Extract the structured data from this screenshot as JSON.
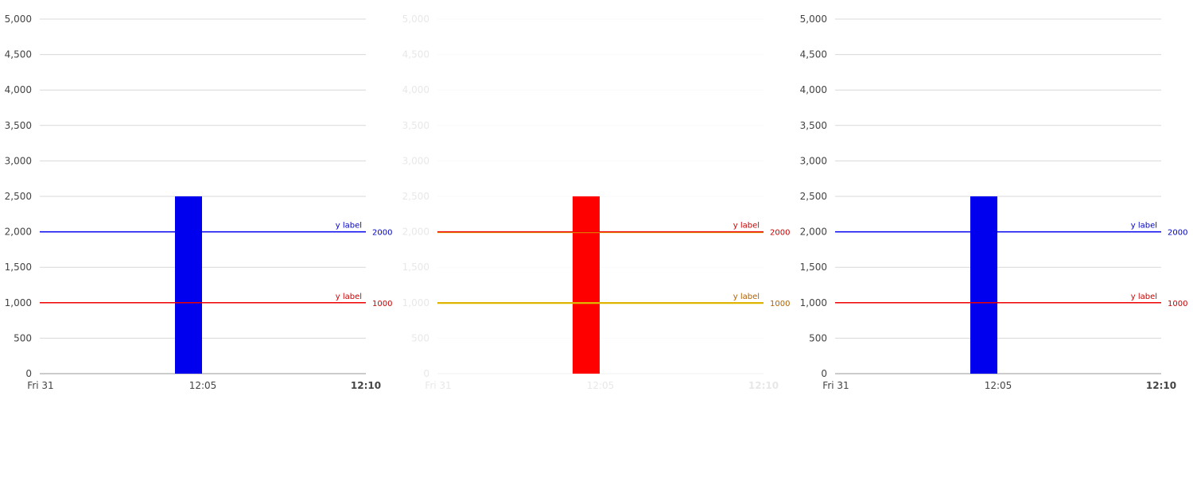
{
  "chart_data": [
    {
      "type": "bar",
      "title": "",
      "style": "normal",
      "ylim": [
        0,
        5000
      ],
      "y_ticks": [
        "0",
        "500",
        "1,000",
        "1,500",
        "2,000",
        "2,500",
        "3,000",
        "3,500",
        "4,000",
        "4,500",
        "5,000"
      ],
      "x_tick_labels": [
        "Fri 31",
        "12:05",
        "12:10"
      ],
      "bars": [
        {
          "time": "12:05",
          "value": 2500,
          "color": "#0000ee"
        }
      ],
      "reference_lines": [
        {
          "value": 2000,
          "label": "y label",
          "value_label": "2000",
          "color": "#0000ee",
          "text_color": "#0000cc"
        },
        {
          "value": 1000,
          "label": "y label",
          "value_label": "1000",
          "color": "#ee0000",
          "text_color": "#cc0000"
        }
      ]
    },
    {
      "type": "bar",
      "title": "",
      "style": "faded",
      "ylim": [
        0,
        5000
      ],
      "y_ticks": [
        "0",
        "500",
        "1,000",
        "1,500",
        "2,000",
        "2,500",
        "3,000",
        "3,500",
        "4,000",
        "4,500",
        "5,000"
      ],
      "x_tick_labels": [
        "Fri 31",
        "12:05",
        "12:10"
      ],
      "bars": [
        {
          "time": "12:05",
          "value": 2500,
          "color": "#ff0000"
        }
      ],
      "reference_lines": [
        {
          "value": 2000,
          "label": "y label",
          "value_label": "2000",
          "color": "#ee0000",
          "text_color": "#cc0000",
          "shadow": "#e0c000"
        },
        {
          "value": 1000,
          "label": "y label",
          "value_label": "1000",
          "color": "#e0b000",
          "text_color": "#b06000",
          "shadow": "#e0c000"
        }
      ]
    },
    {
      "type": "bar",
      "title": "",
      "style": "normal",
      "ylim": [
        0,
        5000
      ],
      "y_ticks": [
        "0",
        "500",
        "1,000",
        "1,500",
        "2,000",
        "2,500",
        "3,000",
        "3,500",
        "4,000",
        "4,500",
        "5,000"
      ],
      "x_tick_labels": [
        "Fri 31",
        "12:05",
        "12:10"
      ],
      "bars": [
        {
          "time": "12:05",
          "value": 2500,
          "color": "#0000ee"
        }
      ],
      "reference_lines": [
        {
          "value": 2000,
          "label": "y label",
          "value_label": "2000",
          "color": "#0000ee",
          "text_color": "#0000cc"
        },
        {
          "value": 1000,
          "label": "y label",
          "value_label": "1000",
          "color": "#ee0000",
          "text_color": "#cc0000"
        }
      ]
    }
  ]
}
